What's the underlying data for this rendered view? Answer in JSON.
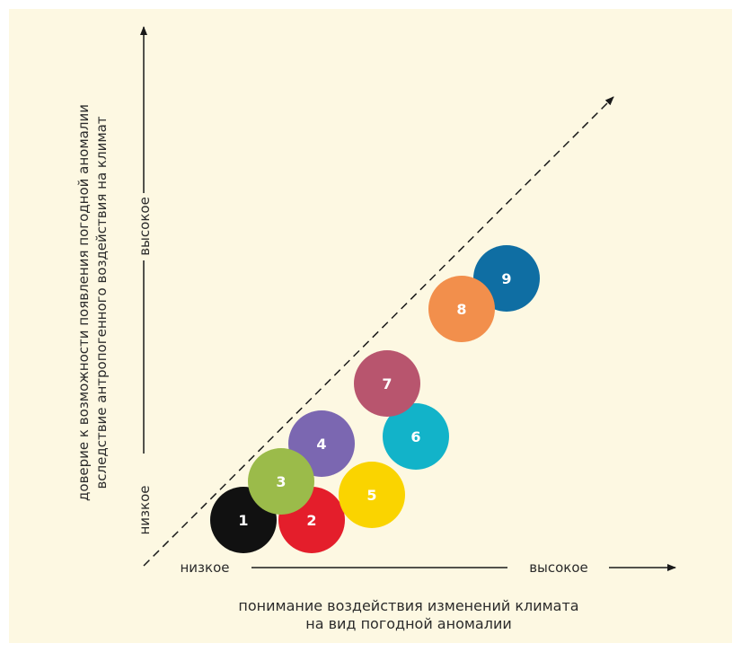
{
  "diagram": {
    "y_axis_title_line1": "доверие к возможности появления погодной аномалии",
    "y_axis_title_line2": "вследствие антропогенного воздействия на климат",
    "y_low": "низкое",
    "y_high": "высокое",
    "x_low": "низкое",
    "x_high": "высокое",
    "x_axis_title_line1": "понимание воздействия изменений климата",
    "x_axis_title_line2": "на вид погодной аномалии",
    "events": [
      {
        "label": "1",
        "color": "#111111"
      },
      {
        "label": "2",
        "color": "#e41e2b"
      },
      {
        "label": "3",
        "color": "#9bbb4a"
      },
      {
        "label": "4",
        "color": "#7b67b1"
      },
      {
        "label": "5",
        "color": "#fad400"
      },
      {
        "label": "6",
        "color": "#12b3c9"
      },
      {
        "label": "7",
        "color": "#b8556e"
      },
      {
        "label": "8",
        "color": "#f28f4c"
      },
      {
        "label": "9",
        "color": "#0f6ea3"
      }
    ]
  }
}
